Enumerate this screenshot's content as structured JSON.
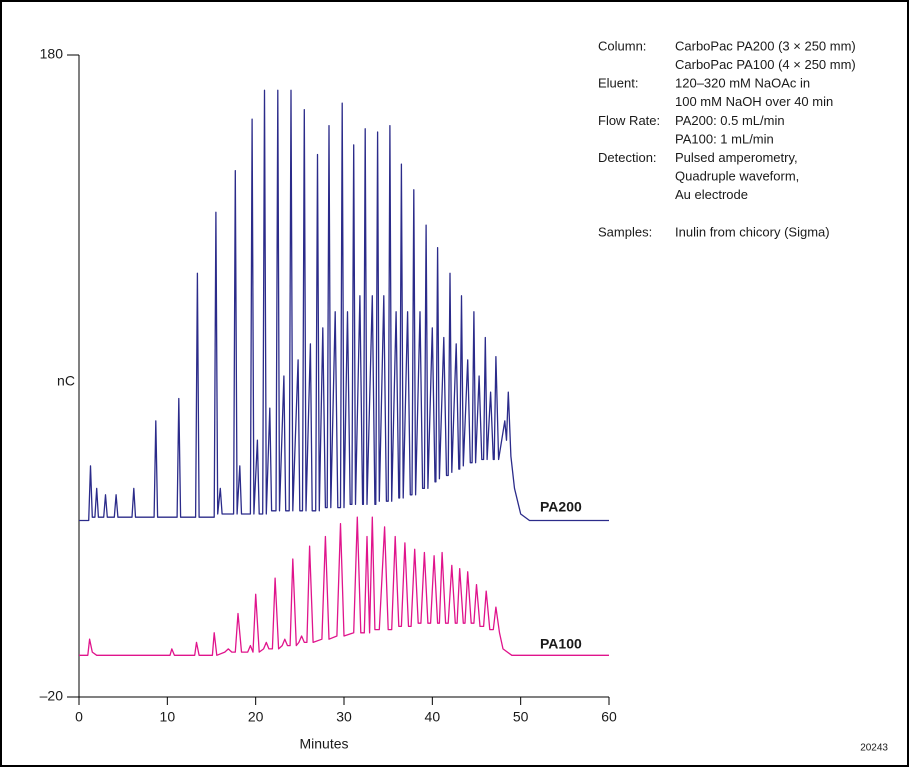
{
  "chart_data": {
    "type": "line",
    "x_label": "Minutes",
    "y_label": "nC",
    "xlim": [
      0,
      60
    ],
    "xticks": [
      0,
      10,
      20,
      30,
      40,
      50,
      60
    ],
    "ylim": [
      -20,
      180
    ],
    "yticks": [
      {
        "value": -20,
        "label": "–20"
      },
      180
    ],
    "figure_code": "20243",
    "annotations": [
      {
        "label": "Column:",
        "lines": [
          "CarboPac PA200 (3 × 250 mm)",
          "CarboPac PA100 (4 × 250 mm)"
        ]
      },
      {
        "label": "Eluent:",
        "lines": [
          "120–320 mM NaOAc in",
          "100 mM NaOH over 40 min"
        ]
      },
      {
        "label": "Flow Rate:",
        "lines": [
          "PA200: 0.5 mL/min",
          "PA100: 1 mL/min"
        ]
      },
      {
        "label": "Detection:",
        "lines": [
          "Pulsed amperometry,",
          "Quadruple waveform,",
          "Au electrode"
        ]
      },
      {
        "label": "Samples:",
        "lines": [
          "Inulin from chicory (Sigma)"
        ]
      }
    ],
    "series": [
      {
        "name": "PA200",
        "color": "#2b2b8a",
        "x": [
          0,
          1.1,
          1.3,
          1.5,
          1.8,
          2.0,
          2.2,
          2.8,
          3.0,
          3.2,
          4.0,
          4.2,
          4.4,
          6.0,
          6.2,
          6.4,
          8.5,
          8.7,
          8.9,
          11.1,
          11.3,
          11.5,
          13.2,
          13.4,
          13.6,
          15.3,
          15.5,
          15.7,
          16.0,
          16.2,
          17.5,
          17.7,
          17.9,
          18.2,
          18.4,
          19.4,
          19.6,
          19.8,
          20.2,
          20.4,
          20.8,
          21.0,
          21.2,
          21.6,
          21.8,
          22.3,
          22.5,
          22.7,
          23.2,
          23.4,
          23.8,
          24.0,
          24.2,
          24.8,
          25.0,
          25.3,
          25.5,
          25.7,
          26.2,
          26.4,
          26.8,
          27.0,
          27.2,
          27.6,
          27.9,
          28.1,
          28.3,
          28.5,
          29.0,
          29.3,
          29.6,
          29.8,
          30.0,
          30.4,
          30.7,
          30.9,
          31.1,
          31.3,
          31.8,
          32.1,
          32.2,
          32.4,
          32.6,
          33.2,
          33.5,
          33.6,
          33.8,
          34.0,
          34.5,
          34.8,
          35.0,
          35.2,
          35.4,
          35.9,
          36.2,
          36.3,
          36.5,
          36.7,
          37.2,
          37.5,
          37.7,
          37.9,
          38.1,
          38.6,
          38.9,
          39.1,
          39.3,
          39.5,
          40.0,
          40.3,
          40.4,
          40.6,
          40.8,
          41.3,
          41.6,
          41.8,
          42.0,
          42.2,
          42.7,
          43.0,
          43.1,
          43.3,
          43.5,
          44.0,
          44.3,
          44.5,
          44.7,
          44.9,
          45.3,
          45.6,
          45.8,
          46.0,
          46.2,
          46.6,
          46.9,
          47.0,
          47.2,
          47.5,
          48.2,
          48.4,
          48.6,
          48.9,
          49.3,
          50.0,
          51.0,
          60.0
        ],
        "values": [
          35,
          35,
          52,
          36,
          36,
          45,
          36,
          36,
          43,
          36,
          36,
          43,
          36,
          36,
          45,
          36,
          36,
          66,
          36,
          36,
          73,
          36,
          36,
          112,
          36,
          36,
          131,
          37,
          45,
          37,
          37,
          144,
          37,
          52,
          37,
          37,
          160,
          37,
          60,
          37,
          37,
          169,
          37,
          70,
          38,
          38,
          169,
          38,
          80,
          38,
          38,
          169,
          38,
          85,
          38,
          38,
          163,
          38,
          90,
          38,
          38,
          149,
          38,
          95,
          39,
          39,
          158,
          39,
          100,
          39,
          39,
          165,
          39,
          100,
          40,
          40,
          152,
          40,
          105,
          40,
          40,
          157,
          40,
          105,
          40,
          40,
          156,
          41,
          105,
          41,
          41,
          158,
          41,
          100,
          42,
          42,
          146,
          42,
          100,
          43,
          43,
          138,
          43,
          100,
          45,
          45,
          127,
          45,
          95,
          47,
          47,
          120,
          48,
          92,
          49,
          49,
          112,
          50,
          90,
          51,
          51,
          105,
          52,
          85,
          53,
          53,
          100,
          53,
          80,
          54,
          54,
          92,
          54,
          75,
          54,
          54,
          86,
          54,
          66,
          60,
          75,
          55,
          45,
          37,
          35,
          35
        ]
      },
      {
        "name": "PA100",
        "color": "#e0148c",
        "x": [
          0,
          1.0,
          1.2,
          1.5,
          2.0,
          10.3,
          10.5,
          10.8,
          13.1,
          13.3,
          13.6,
          15.1,
          15.3,
          15.6,
          16.5,
          16.9,
          17.3,
          17.7,
          18.0,
          18.4,
          19.1,
          19.4,
          19.7,
          20.0,
          20.4,
          20.9,
          21.2,
          21.5,
          21.9,
          22.2,
          22.6,
          23.0,
          23.3,
          23.6,
          23.9,
          24.2,
          24.6,
          24.9,
          25.2,
          25.5,
          25.8,
          26.1,
          26.5,
          27.5,
          27.9,
          28.3,
          29.2,
          29.6,
          30.0,
          31.1,
          31.5,
          31.9,
          32.3,
          32.6,
          32.9,
          33.2,
          33.5,
          34.0,
          34.6,
          35.0,
          35.4,
          35.8,
          36.2,
          36.5,
          36.9,
          37.3,
          37.6,
          38.0,
          38.4,
          38.7,
          39.1,
          39.5,
          39.8,
          40.2,
          40.6,
          40.8,
          41.1,
          41.5,
          41.8,
          42.2,
          42.6,
          42.8,
          43.1,
          43.5,
          43.7,
          44.0,
          44.4,
          44.7,
          45.0,
          45.4,
          45.8,
          46.1,
          46.5,
          46.9,
          47.2,
          47.6,
          48.0,
          49.0,
          60.0
        ],
        "values": [
          -7,
          -7,
          -2,
          -6,
          -7,
          -7,
          -5,
          -7,
          -7,
          -3,
          -7,
          -7,
          0,
          -7,
          -6,
          -5,
          -6,
          -6,
          6,
          -6,
          -6,
          -4,
          -6,
          12,
          -6,
          -5,
          -3,
          -5,
          -5,
          17,
          -5,
          -4,
          -2,
          -4,
          -4,
          23,
          -4,
          -3,
          -1,
          -3,
          -3,
          27,
          -3,
          -2,
          30,
          -2,
          -1,
          34,
          -1,
          0,
          36,
          0,
          0,
          30,
          0,
          36,
          1,
          1,
          33,
          1,
          1,
          30,
          2,
          2,
          28,
          2,
          2,
          26,
          3,
          3,
          25,
          3,
          3,
          24,
          3,
          3,
          25,
          3,
          3,
          21,
          3,
          3,
          20,
          3,
          3,
          19,
          3,
          3,
          15,
          2,
          2,
          13,
          1,
          1,
          8,
          0,
          -5,
          -7,
          -7
        ]
      }
    ]
  }
}
